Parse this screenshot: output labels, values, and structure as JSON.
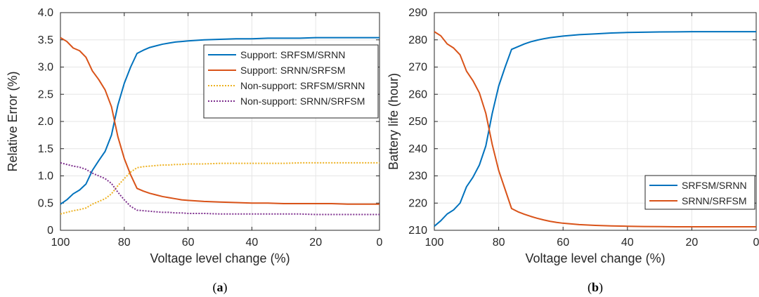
{
  "chart_data": [
    {
      "type": "line",
      "panel": {
        "open": "(",
        "letter": "a",
        "close": ")"
      },
      "xlabel": "Voltage level change (%)",
      "ylabel": "Relative Error (%)",
      "xlim": [
        100,
        0
      ],
      "ylim": [
        0,
        4
      ],
      "xticks": [
        100,
        80,
        60,
        40,
        20,
        0
      ],
      "yticks": [
        "0",
        "0.5",
        "1.0",
        "1.5",
        "2.0",
        "2.5",
        "3.0",
        "3.5",
        "4.0"
      ],
      "grid": true,
      "legend_position": "top-right",
      "x": [
        100,
        98,
        96,
        94,
        92,
        90,
        88,
        86,
        84,
        82,
        80,
        78,
        76,
        74,
        72,
        70,
        68,
        66,
        64,
        62,
        60,
        55,
        50,
        45,
        40,
        35,
        30,
        25,
        20,
        15,
        10,
        5,
        0
      ],
      "series": [
        {
          "name": "Support: SRFSM/SRNN",
          "color": "#0072BD",
          "dash": "solid",
          "values": [
            0.48,
            0.56,
            0.67,
            0.74,
            0.85,
            1.1,
            1.28,
            1.45,
            1.75,
            2.3,
            2.7,
            3.0,
            3.25,
            3.31,
            3.36,
            3.39,
            3.42,
            3.44,
            3.46,
            3.47,
            3.48,
            3.5,
            3.51,
            3.52,
            3.52,
            3.53,
            3.53,
            3.53,
            3.54,
            3.54,
            3.54,
            3.54,
            3.54
          ]
        },
        {
          "name": "Support: SRNN/SRFSM",
          "color": "#D95319",
          "dash": "solid",
          "values": [
            3.54,
            3.47,
            3.35,
            3.3,
            3.18,
            2.93,
            2.77,
            2.58,
            2.27,
            1.72,
            1.32,
            1.02,
            0.77,
            0.72,
            0.68,
            0.65,
            0.62,
            0.6,
            0.58,
            0.56,
            0.55,
            0.53,
            0.52,
            0.51,
            0.5,
            0.5,
            0.49,
            0.49,
            0.49,
            0.49,
            0.48,
            0.48,
            0.48
          ]
        },
        {
          "name": "Non-support: SRFSM/SRNN",
          "color": "#EDB120",
          "dash": "dotted",
          "values": [
            0.3,
            0.33,
            0.36,
            0.38,
            0.41,
            0.48,
            0.53,
            0.58,
            0.67,
            0.82,
            0.95,
            1.07,
            1.15,
            1.17,
            1.18,
            1.19,
            1.2,
            1.2,
            1.21,
            1.21,
            1.22,
            1.22,
            1.23,
            1.23,
            1.23,
            1.23,
            1.23,
            1.24,
            1.24,
            1.24,
            1.24,
            1.24,
            1.24
          ]
        },
        {
          "name": "Non-support: SRNN/SRFSM",
          "color": "#7E2F8E",
          "dash": "dotted",
          "values": [
            1.24,
            1.21,
            1.18,
            1.16,
            1.12,
            1.05,
            1.0,
            0.95,
            0.86,
            0.7,
            0.56,
            0.44,
            0.37,
            0.36,
            0.35,
            0.34,
            0.33,
            0.33,
            0.32,
            0.32,
            0.31,
            0.31,
            0.3,
            0.3,
            0.3,
            0.3,
            0.3,
            0.3,
            0.29,
            0.29,
            0.29,
            0.29,
            0.29
          ]
        }
      ]
    },
    {
      "type": "line",
      "panel": {
        "open": "(",
        "letter": "b",
        "close": ")"
      },
      "xlabel": "Voltage level change (%)",
      "ylabel": "Battery life (hour)",
      "xlim": [
        100,
        0
      ],
      "ylim": [
        210,
        290
      ],
      "xticks": [
        100,
        80,
        60,
        40,
        20,
        0
      ],
      "yticks": [
        "210",
        "220",
        "230",
        "240",
        "250",
        "260",
        "270",
        "280",
        "290"
      ],
      "grid": true,
      "legend_position": "bottom-right",
      "x": [
        100,
        98,
        96,
        94,
        92,
        90,
        88,
        86,
        84,
        82,
        80,
        78,
        76,
        74,
        72,
        70,
        68,
        66,
        64,
        62,
        60,
        55,
        50,
        45,
        40,
        35,
        30,
        25,
        20,
        15,
        10,
        5,
        0
      ],
      "series": [
        {
          "name": "SRFSM/SRNN",
          "color": "#0072BD",
          "dash": "solid",
          "values": [
            211.5,
            213.5,
            216,
            217.5,
            220,
            226,
            229.5,
            234,
            241,
            253,
            263,
            270,
            276.5,
            277.5,
            278.5,
            279.3,
            279.9,
            280.4,
            280.8,
            281.1,
            281.4,
            281.9,
            282.2,
            282.5,
            282.7,
            282.8,
            282.9,
            282.95,
            283,
            283,
            283,
            283,
            283
          ]
        },
        {
          "name": "SRNN/SRFSM",
          "color": "#D95319",
          "dash": "solid",
          "values": [
            283,
            281.5,
            278.5,
            277,
            274.5,
            268.5,
            265,
            260.5,
            253,
            241.5,
            232,
            225,
            218,
            216.8,
            215.9,
            215.1,
            214.4,
            213.8,
            213.3,
            212.9,
            212.6,
            212.1,
            211.8,
            211.6,
            211.5,
            211.4,
            211.35,
            211.3,
            211.3,
            211.3,
            211.3,
            211.3,
            211.3
          ]
        }
      ]
    }
  ]
}
